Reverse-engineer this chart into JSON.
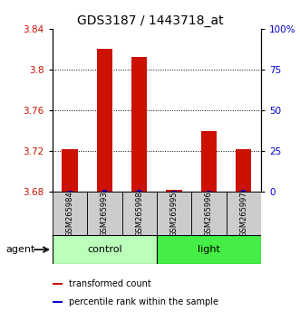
{
  "title": "GDS3187 / 1443718_at",
  "samples": [
    "GSM265984",
    "GSM265993",
    "GSM265998",
    "GSM265995",
    "GSM265996",
    "GSM265997"
  ],
  "red_values": [
    3.722,
    3.82,
    3.812,
    3.682,
    3.74,
    3.722
  ],
  "blue_values": [
    3.6815,
    3.6818,
    3.682,
    3.6812,
    3.6815,
    3.6818
  ],
  "ylim": [
    3.68,
    3.84
  ],
  "ylim_right": [
    0,
    100
  ],
  "yticks_left": [
    3.68,
    3.72,
    3.76,
    3.8,
    3.84
  ],
  "ytick_labels_left": [
    "3.68",
    "3.72",
    "3.76",
    "3.8",
    "3.84"
  ],
  "yticks_right": [
    0,
    25,
    50,
    75,
    100
  ],
  "ytick_labels_right": [
    "0",
    "25",
    "50",
    "75",
    "100%"
  ],
  "groups": [
    {
      "label": "control",
      "span": [
        0,
        2
      ],
      "color": "#bbffbb"
    },
    {
      "label": "light",
      "span": [
        3,
        5
      ],
      "color": "#44ee44"
    }
  ],
  "agent_label": "agent",
  "legend_items": [
    {
      "label": "transformed count",
      "color": "#cc1100"
    },
    {
      "label": "percentile rank within the sample",
      "color": "#0000cc"
    }
  ],
  "red_color": "#cc1100",
  "blue_color": "#0000cc",
  "sample_box_color": "#cccccc",
  "title_fontsize": 10,
  "tick_fontsize": 7.5,
  "sample_fontsize": 6,
  "group_fontsize": 8,
  "legend_fontsize": 7
}
